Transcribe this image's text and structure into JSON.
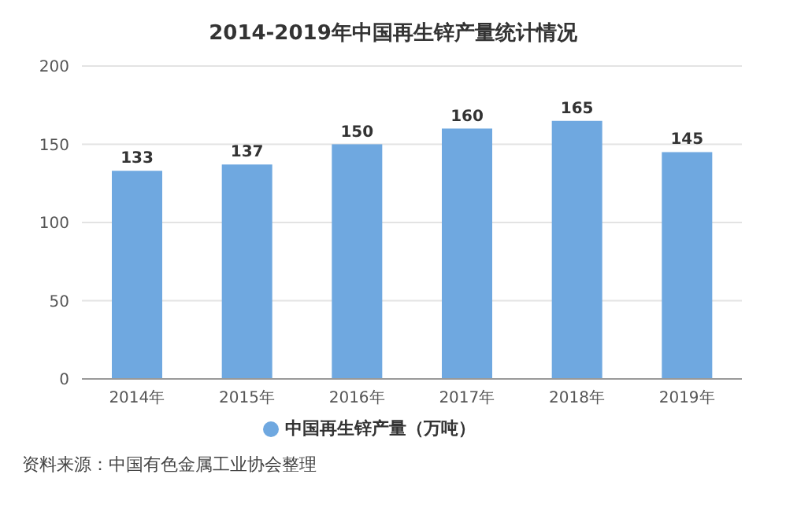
{
  "chart_data": {
    "type": "bar",
    "title": "2014-2019年中国再生锌产量统计情况",
    "categories": [
      "2014年",
      "2015年",
      "2016年",
      "2017年",
      "2018年",
      "2019年"
    ],
    "series": [
      {
        "name": "中国再生锌产量（万吨）",
        "color": "#6fa8e0",
        "values": [
          133,
          137,
          150,
          160,
          165,
          145
        ]
      }
    ],
    "ylim": [
      0,
      200
    ],
    "yticks": [
      0,
      50,
      100,
      150,
      200
    ],
    "grid": "y",
    "legend": "bottom",
    "data_labels": true,
    "annotations": [
      "资料来源：中国有色金属工业协会整理"
    ]
  }
}
